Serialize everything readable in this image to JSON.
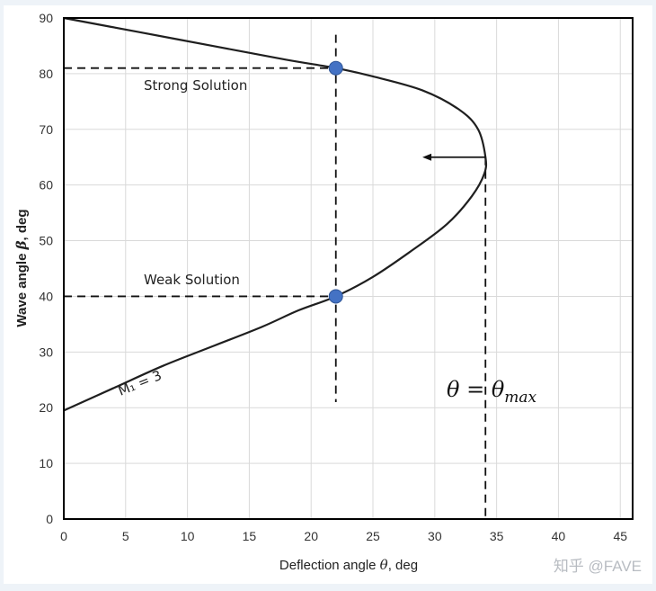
{
  "chart_data": {
    "type": "line",
    "xlabel_text": "Deflection angle ",
    "xlabel_symbol": "θ",
    "xlabel_unit": ", deg",
    "ylabel_text": "Wave angle ",
    "ylabel_symbol": "β",
    "ylabel_unit": ", deg",
    "xlim": [
      0,
      46
    ],
    "ylim": [
      0,
      90
    ],
    "xticks": [
      0,
      5,
      10,
      15,
      20,
      25,
      30,
      35,
      40,
      45
    ],
    "yticks": [
      0,
      10,
      20,
      30,
      40,
      50,
      60,
      70,
      80,
      90
    ],
    "grid": true,
    "series": [
      {
        "label": "M₁ = 3",
        "color": "#1f1f1f",
        "points": [
          [
            0,
            19.5
          ],
          [
            4,
            23.5
          ],
          [
            8,
            27.5
          ],
          [
            12,
            31
          ],
          [
            16,
            34.5
          ],
          [
            19,
            37.5
          ],
          [
            22,
            40
          ],
          [
            25,
            43.5
          ],
          [
            28,
            48
          ],
          [
            31,
            53
          ],
          [
            33,
            58
          ],
          [
            34,
            62
          ],
          [
            34.1,
            65
          ],
          [
            33.5,
            70
          ],
          [
            32,
            73.5
          ],
          [
            29,
            77
          ],
          [
            25,
            79.5
          ],
          [
            22,
            81
          ],
          [
            18,
            82.5
          ],
          [
            12,
            85
          ],
          [
            6,
            87.5
          ],
          [
            0,
            90
          ]
        ]
      }
    ],
    "markers": [
      {
        "label": "Strong Solution",
        "x": 22,
        "y": 81,
        "color": "#4472c4"
      },
      {
        "label": "Weak Solution",
        "x": 22,
        "y": 40,
        "color": "#4472c4"
      }
    ],
    "vline_theta": {
      "x": 22,
      "y_from": 21,
      "y_to": 87
    },
    "vline_max": {
      "x": 34.1,
      "y_from": 0,
      "y_to": 65
    },
    "arrow": {
      "from": [
        34.1,
        65
      ],
      "to": [
        29,
        65
      ]
    },
    "theta_max_annotation": {
      "lhs": "θ = θ",
      "sub": "max"
    }
  },
  "watermark": "知乎 @FAVE"
}
